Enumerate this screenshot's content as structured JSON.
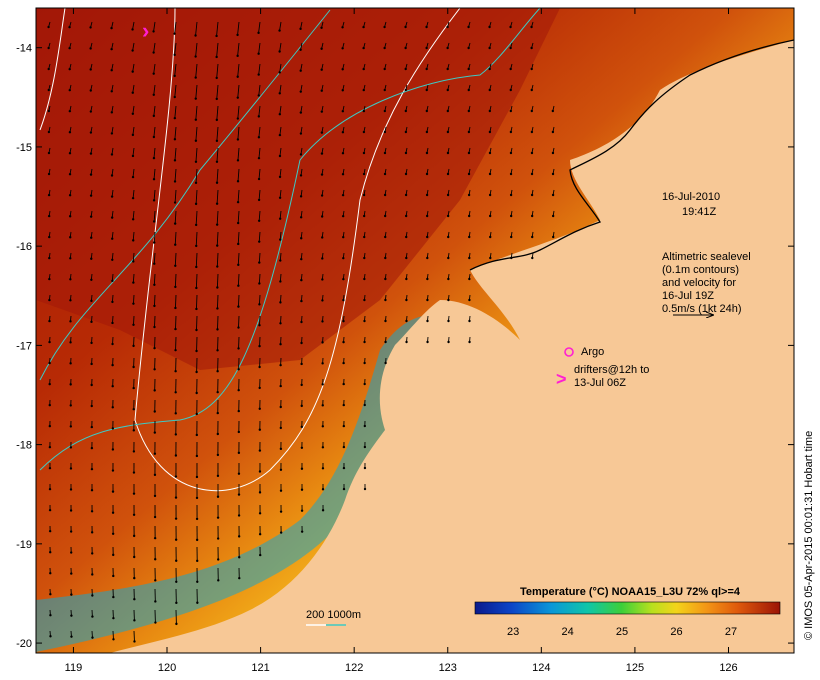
{
  "map": {
    "lon_ticks": [
      "119",
      "120",
      "121",
      "122",
      "123",
      "124",
      "125",
      "126"
    ],
    "lat_ticks": [
      "-14",
      "-15",
      "-16",
      "-17",
      "-18",
      "-19",
      "-20"
    ],
    "lon_range": [
      118.6,
      126.7
    ],
    "lat_range": [
      -20.1,
      -13.6
    ]
  },
  "timestamp": {
    "date": "16-Jul-2010",
    "time": "19:41Z"
  },
  "altimetry": {
    "lines": [
      "Altimetric sealevel",
      "(0.1m contours)",
      "and velocity for",
      "16-Jul 19Z",
      "0.5m/s (1kt 24h)"
    ]
  },
  "argo": {
    "label": "Argo"
  },
  "drifters": {
    "line1": "drifters@12h to",
    "line2": "13-Jul 06Z"
  },
  "depth_legend": {
    "label": "200  1000m"
  },
  "colorbar": {
    "title": "Temperature (°C) NOAA15_L3U 72% ql>=4",
    "ticks": [
      "23",
      "24",
      "25",
      "26",
      "27"
    ],
    "range": [
      22.3,
      27.9
    ]
  },
  "credit": "© IMOS 05-Apr-2015 00:01:31 Hobart time",
  "colors": {
    "land": "#f7c896",
    "contour_200m": "#ffffff",
    "contour_1000m": "#3ec9c4",
    "argo_drifter": "#ff1fd2"
  }
}
